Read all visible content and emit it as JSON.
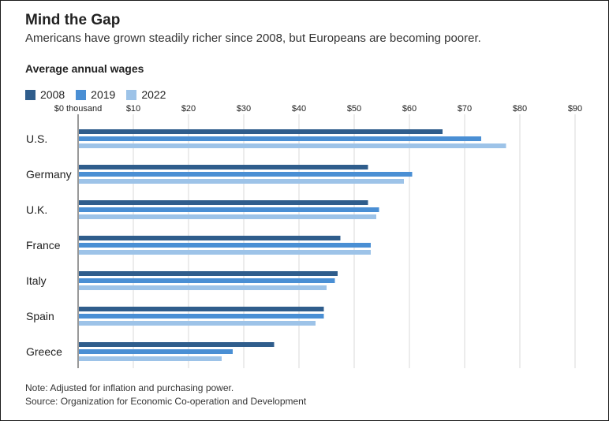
{
  "title": "Mind the Gap",
  "subtitle": "Americans have grown steadily richer since 2008, but Europeans are becoming poorer.",
  "section_label": "Average annual wages",
  "notes": {
    "note": "Note: Adjusted for inflation and purchasing power.",
    "source": "Source: Organization for Economic Co-operation and Development"
  },
  "colors": {
    "s2008": "#2f5d8c",
    "s2019": "#4a8fd4",
    "s2022": "#9dc3e8",
    "axis": "#333333",
    "grid": "#d9d9d9"
  },
  "chart_data": {
    "type": "bar",
    "orientation": "horizontal",
    "categories": [
      "U.S.",
      "Germany",
      "U.K.",
      "France",
      "Italy",
      "Spain",
      "Greece"
    ],
    "series": [
      {
        "name": "2008",
        "values": [
          66.0,
          52.5,
          52.5,
          47.5,
          47.0,
          44.5,
          35.5
        ]
      },
      {
        "name": "2019",
        "values": [
          73.0,
          60.5,
          54.5,
          53.0,
          46.5,
          44.5,
          28.0
        ]
      },
      {
        "name": "2022",
        "values": [
          77.5,
          59.0,
          54.0,
          53.0,
          45.0,
          43.0,
          26.0
        ]
      }
    ],
    "tick_values": [
      0,
      10,
      20,
      30,
      40,
      50,
      60,
      70,
      80,
      90
    ],
    "tick_labels": [
      "$0 thousand",
      "$10",
      "$20",
      "$30",
      "$40",
      "$50",
      "$60",
      "$70",
      "$80",
      "$90"
    ],
    "xlim": [
      0,
      90
    ],
    "grid": true,
    "legend_position": "top-left",
    "title": "Average annual wages"
  }
}
